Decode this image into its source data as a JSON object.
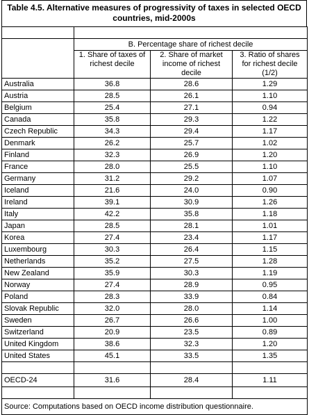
{
  "header": {
    "title": [
      "Table 4.5. Alternative measures of progressivity of taxes in selected OECD",
      "countries, mid-2000s"
    ]
  },
  "table": {
    "group_header": "B. Percentage share of richest decile",
    "columns": [
      "1. Share of taxes of richest decile",
      "2. Share of market income of richest decile",
      "3. Ratio of shares for richest decile (1/2)"
    ],
    "rows": [
      [
        "Australia",
        "36.8",
        "28.6",
        "1.29"
      ],
      [
        "Austria",
        "28.5",
        "26.1",
        "1.10"
      ],
      [
        "Belgium",
        "25.4",
        "27.1",
        "0.94"
      ],
      [
        "Canada",
        "35.8",
        "29.3",
        "1.22"
      ],
      [
        "Czech Republic",
        "34.3",
        "29.4",
        "1.17"
      ],
      [
        "Denmark",
        "26.2",
        "25.7",
        "1.02"
      ],
      [
        "Finland",
        "32.3",
        "26.9",
        "1.20"
      ],
      [
        "France",
        "28.0",
        "25.5",
        "1.10"
      ],
      [
        "Germany",
        "31.2",
        "29.2",
        "1.07"
      ],
      [
        "Iceland",
        "21.6",
        "24.0",
        "0.90"
      ],
      [
        "Ireland",
        "39.1",
        "30.9",
        "1.26"
      ],
      [
        "Italy",
        "42.2",
        "35.8",
        "1.18"
      ],
      [
        "Japan",
        "28.5",
        "28.1",
        "1.01"
      ],
      [
        "Korea",
        "27.4",
        "23.4",
        "1.17"
      ],
      [
        "Luxembourg",
        "30.3",
        "26.4",
        "1.15"
      ],
      [
        "Netherlands",
        "35.2",
        "27.5",
        "1.28"
      ],
      [
        "New Zealand",
        "35.9",
        "30.3",
        "1.19"
      ],
      [
        "Norway",
        "27.4",
        "28.9",
        "0.95"
      ],
      [
        "Poland",
        "28.3",
        "33.9",
        "0.84"
      ],
      [
        "Slovak Republic",
        "32.0",
        "28.0",
        "1.14"
      ],
      [
        "Sweden",
        "26.7",
        "26.6",
        "1.00"
      ],
      [
        "Switzerland",
        "20.9",
        "23.5",
        "0.89"
      ],
      [
        "United Kingdom",
        "38.6",
        "32.3",
        "1.20"
      ],
      [
        "United States",
        "45.1",
        "33.5",
        "1.35"
      ]
    ],
    "total": [
      "OECD-24",
      "31.6",
      "28.4",
      "1.11"
    ]
  },
  "footer": {
    "source": "Source: Computations based on OECD income distribution questionnaire."
  }
}
